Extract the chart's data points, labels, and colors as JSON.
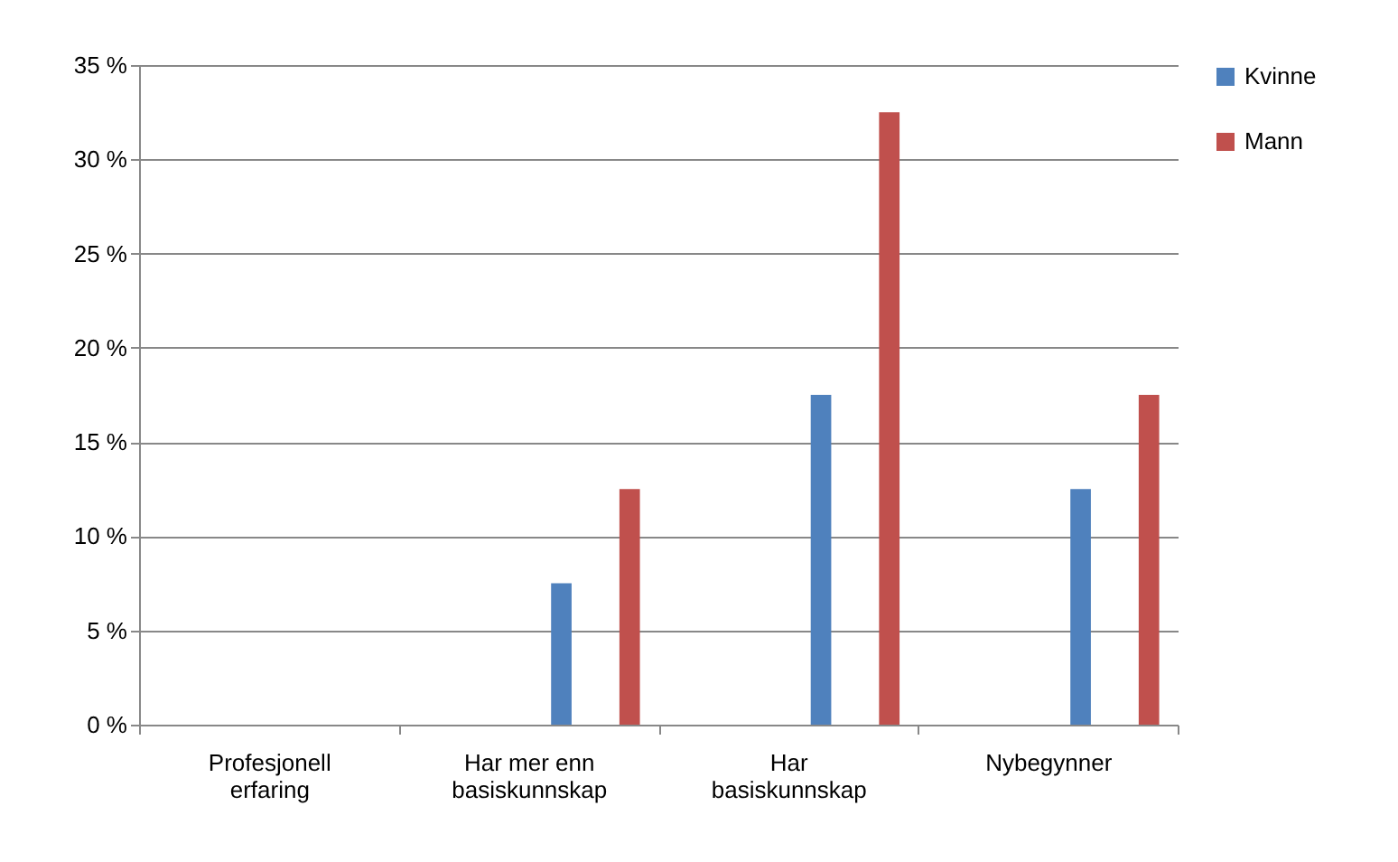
{
  "chart_data": {
    "type": "bar",
    "categories": [
      "Profesjonell erfaring",
      "Har mer enn basiskunnskap",
      "Har basiskunnskap",
      "Nybegynner"
    ],
    "series": [
      {
        "name": "Kvinne",
        "color": "#4f81bd",
        "values": [
          0,
          7.5,
          17.5,
          12.5
        ]
      },
      {
        "name": "Mann",
        "color": "#c0504d",
        "values": [
          0,
          12.5,
          32.5,
          17.5
        ]
      }
    ],
    "ylim": [
      0,
      35
    ],
    "yticks": [
      {
        "value": 0,
        "label": "0 %"
      },
      {
        "value": 5,
        "label": "5 %"
      },
      {
        "value": 10,
        "label": "10 %"
      },
      {
        "value": 15,
        "label": "15 %"
      },
      {
        "value": 20,
        "label": "20 %"
      },
      {
        "value": 25,
        "label": "25 %"
      },
      {
        "value": 30,
        "label": "30 %"
      },
      {
        "value": 35,
        "label": "35 %"
      }
    ],
    "grid": "y",
    "legend": "right"
  }
}
